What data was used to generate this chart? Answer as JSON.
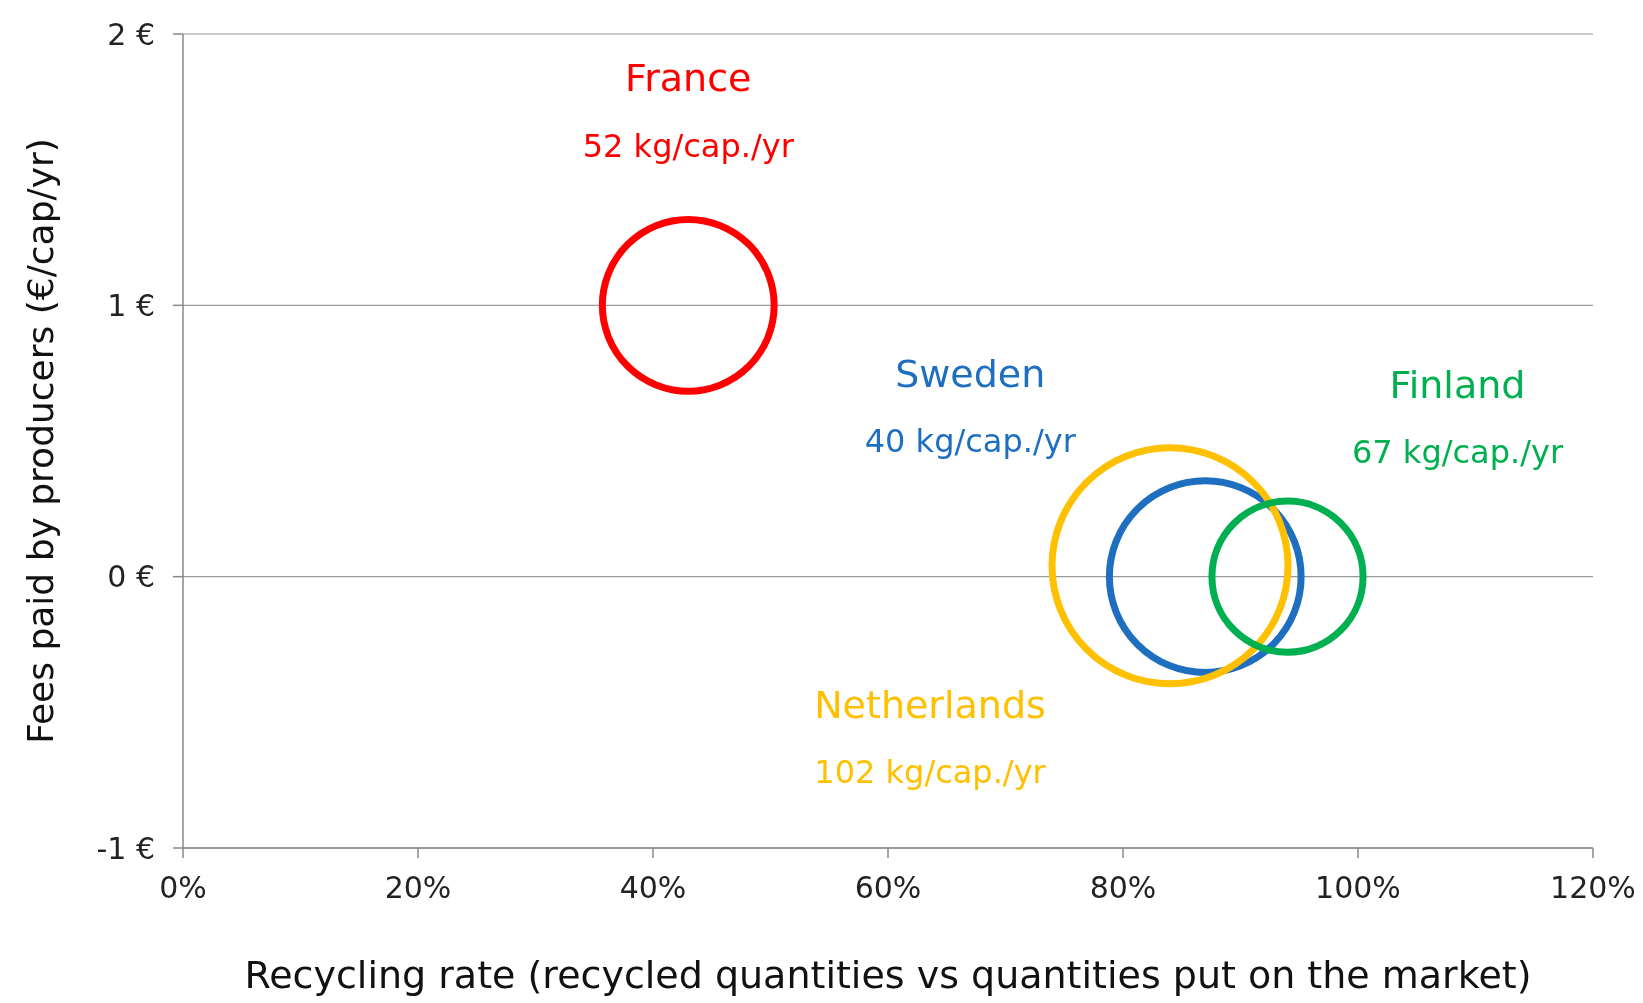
{
  "chart_data": {
    "type": "bubble",
    "xlabel": "Recycling rate (recycled quantities vs quantities put on the market)",
    "ylabel": "Fees paid by producers (€/cap/yr)",
    "xlim": [
      0,
      120
    ],
    "xticks": [
      {
        "value": 0,
        "label": "0%"
      },
      {
        "value": 20,
        "label": "20%"
      },
      {
        "value": 40,
        "label": "40%"
      },
      {
        "value": 60,
        "label": "60%"
      },
      {
        "value": 80,
        "label": "80%"
      },
      {
        "value": 100,
        "label": "100%"
      },
      {
        "value": 120,
        "label": "120%"
      }
    ],
    "ylim": [
      -1,
      2
    ],
    "yticks": [
      {
        "value": -1,
        "label": "-1 €"
      },
      {
        "value": 0,
        "label": "0 €"
      },
      {
        "value": 1,
        "label": "1 €"
      },
      {
        "value": 2,
        "label": "2 €"
      }
    ],
    "grid": "y",
    "series": [
      {
        "name": "France",
        "color": "#ff0000",
        "x": [
          43
        ],
        "values": [
          1
        ],
        "sizes": [
          0.53
        ]
      },
      {
        "name": "Sweden",
        "color": "#1f6fc0",
        "x": [
          87
        ],
        "values": [
          0
        ],
        "sizes": [
          0.66
        ]
      },
      {
        "name": "Netherlands",
        "color": "#ffc000",
        "x": [
          84
        ],
        "values": [
          0.04
        ],
        "sizes": [
          1
        ]
      },
      {
        "name": "Finland",
        "color": "#00b050",
        "x": [
          94
        ],
        "values": [
          0
        ],
        "sizes": [
          0.41
        ]
      }
    ],
    "annotations": [
      "52 kg/cap./yr",
      "40 kg/cap./yr",
      "102 kg/cap./yr",
      "67 kg/cap./yr"
    ]
  }
}
